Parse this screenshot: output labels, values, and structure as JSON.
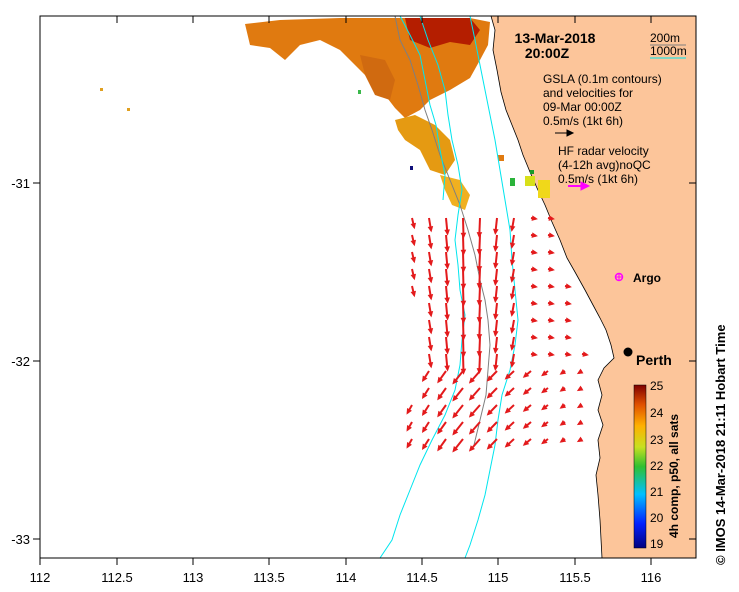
{
  "date": "13-Mar-2018",
  "time": "20:00Z",
  "contour_legend": {
    "shallow": "200m",
    "deep": "1000m",
    "deep_color": "#00e5ee"
  },
  "gsla": {
    "line1": "GSLA (0.1m contours)",
    "line2": "and velocities for",
    "line3": "09-Mar 00:00Z",
    "line4": "0.5m/s (1kt 6h)"
  },
  "hf_radar": {
    "line1": "HF radar velocity",
    "line2": "(4-12h avg)noQC",
    "line3": "0.5m/s (1kt 6h)",
    "arrow_color": "#ff00ff"
  },
  "argo_label": "Argo",
  "city_label": "Perth",
  "colorbar": {
    "title": "4h comp, p50, all sats",
    "ticks": [
      "25",
      "24",
      "23",
      "22",
      "21",
      "20",
      "19"
    ]
  },
  "credit": "© IMOS 14-Mar-2018 21:11 Hobart Time",
  "x_ticks": [
    "112",
    "112.5",
    "113",
    "113.5",
    "114",
    "114.5",
    "115",
    "115.5",
    "116"
  ],
  "y_ticks": [
    "-31",
    "-32",
    "-33"
  ],
  "colors": {
    "land": "#fcc59a",
    "arrows": "#e31a1c",
    "ocean": "#ffffff"
  }
}
